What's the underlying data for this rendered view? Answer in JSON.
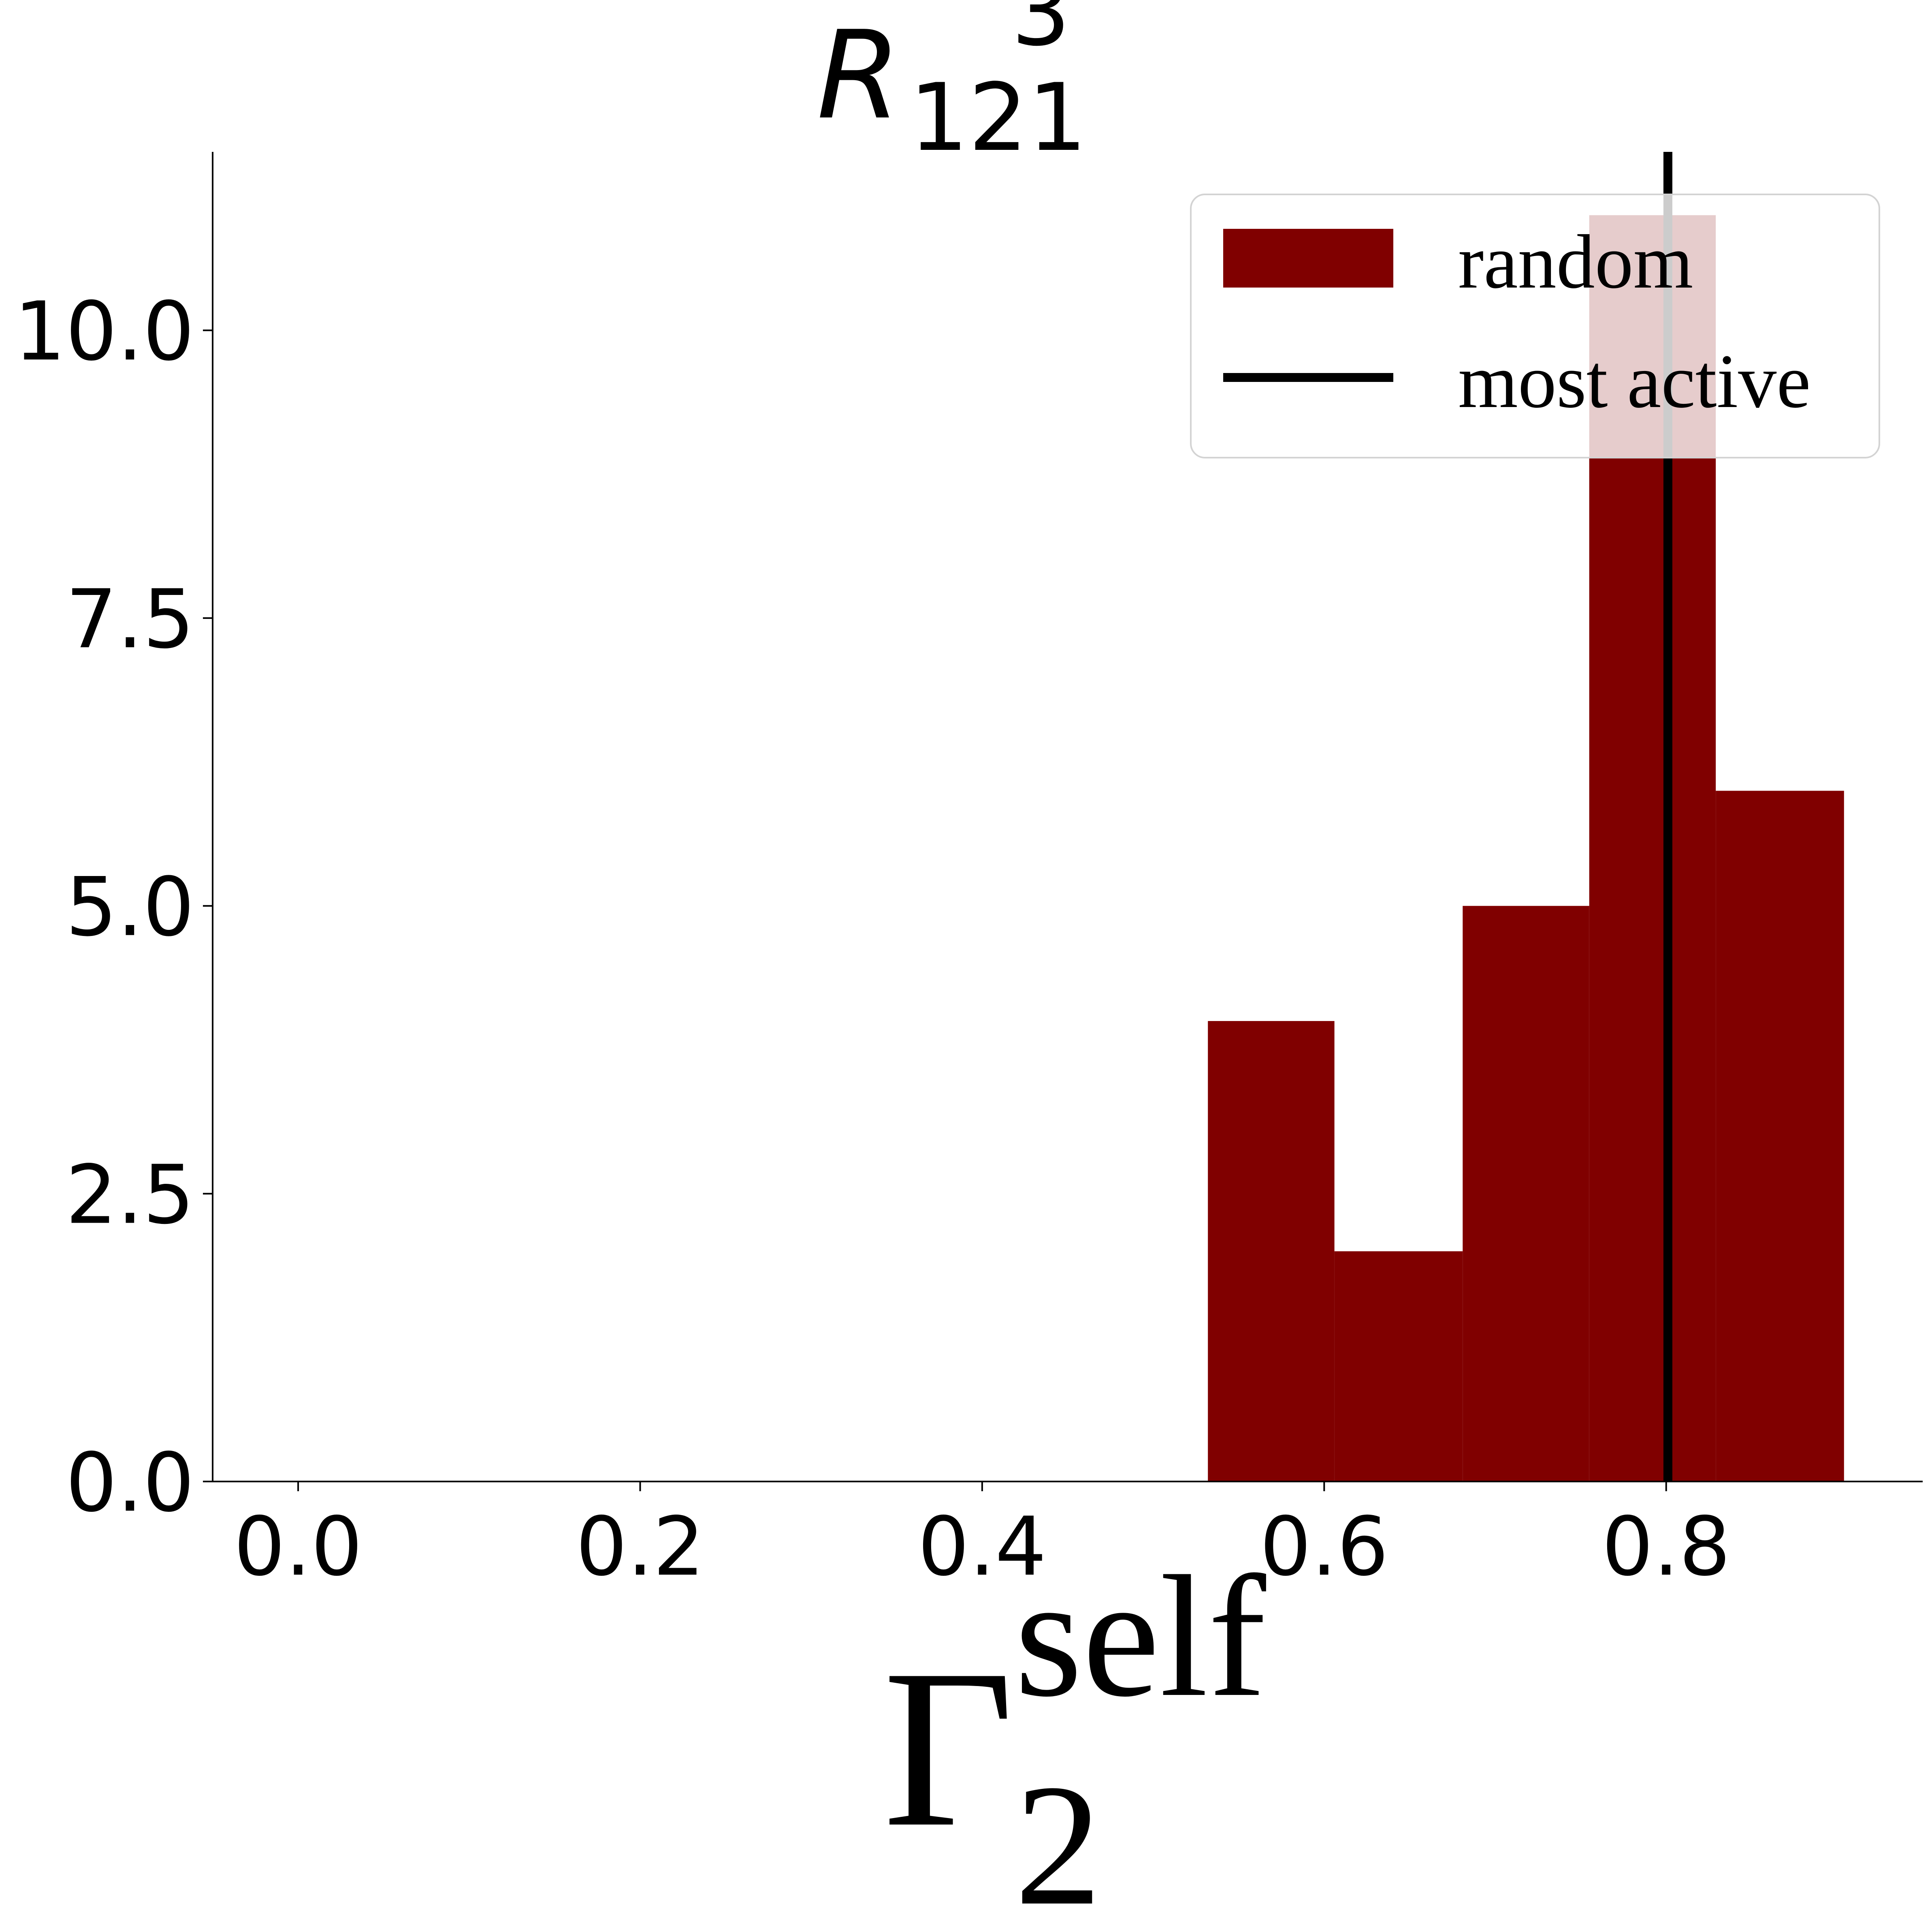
{
  "chart_data": {
    "type": "bar",
    "title": {
      "base": "R",
      "subscript": "121",
      "superscript": "3"
    },
    "xlabel": {
      "base": "Γ",
      "subscript": "2",
      "superscript": "self"
    },
    "ylabel": "",
    "xlim": [
      -0.05,
      0.95
    ],
    "ylim": [
      0,
      11.55
    ],
    "x_ticks": [
      0.0,
      0.2,
      0.4,
      0.6,
      0.8
    ],
    "x_tick_labels": [
      "0.0",
      "0.2",
      "0.4",
      "0.6",
      "0.8"
    ],
    "y_ticks": [
      0.0,
      2.5,
      5.0,
      7.5,
      10.0
    ],
    "y_tick_labels": [
      "0.0",
      "2.5",
      "5.0",
      "7.5",
      "10.0"
    ],
    "series": [
      {
        "name": "random",
        "type": "histogram",
        "color": "#800000",
        "bins": [
          {
            "x0": 0.532,
            "x1": 0.606,
            "count": 4
          },
          {
            "x0": 0.606,
            "x1": 0.681,
            "count": 2
          },
          {
            "x0": 0.681,
            "x1": 0.755,
            "count": 5
          },
          {
            "x0": 0.755,
            "x1": 0.829,
            "count": 11
          },
          {
            "x0": 0.829,
            "x1": 0.904,
            "count": 6
          }
        ]
      },
      {
        "name": "most active",
        "type": "vline",
        "color": "#000000",
        "x": 0.801
      }
    ],
    "legend": {
      "placement": "top-right",
      "entries": [
        "random",
        "most active"
      ]
    },
    "grid": false
  }
}
